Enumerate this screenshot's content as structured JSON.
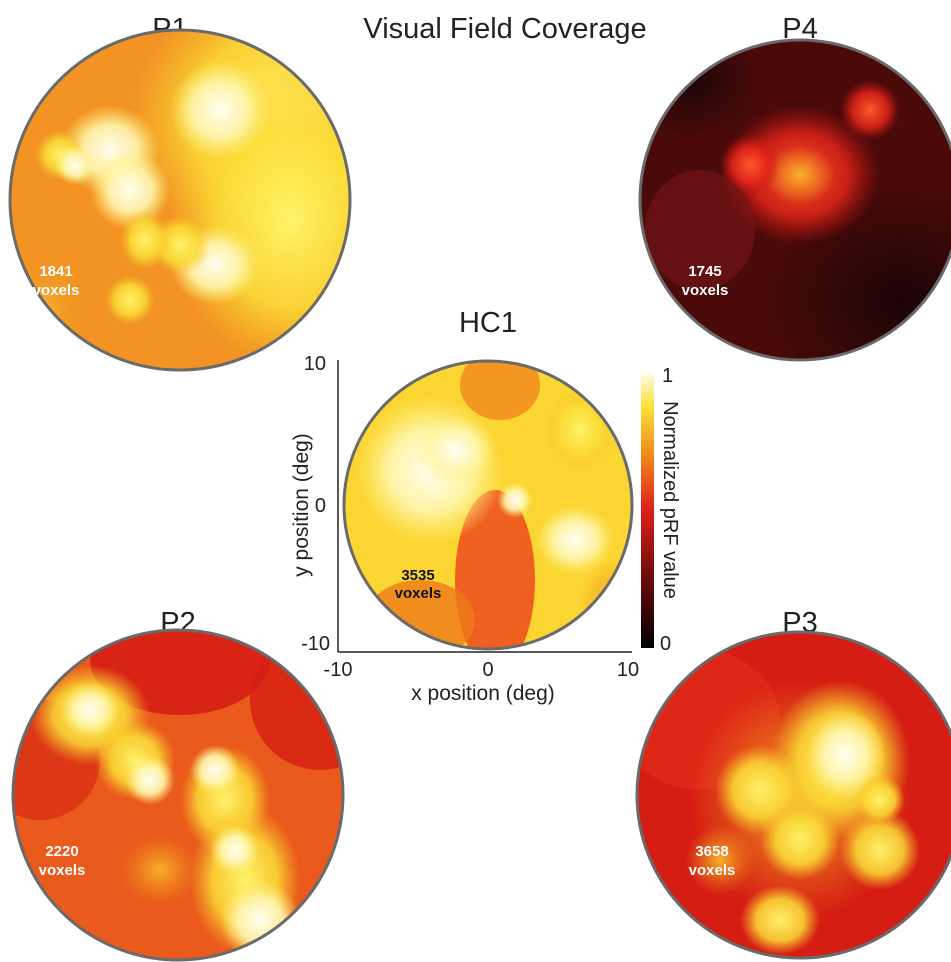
{
  "figure": {
    "title": "Visual Field Coverage",
    "voxels_word": "voxels",
    "panels": [
      {
        "id": "P1",
        "label": "P1",
        "voxels": "1841",
        "brightness": "high"
      },
      {
        "id": "P4",
        "label": "P4",
        "voxels": "1745",
        "brightness": "low"
      },
      {
        "id": "HC1",
        "label": "HC1",
        "voxels": "3535",
        "brightness": "highest"
      },
      {
        "id": "P2",
        "label": "P2",
        "voxels": "2220",
        "brightness": "medium"
      },
      {
        "id": "P3",
        "label": "P3",
        "voxels": "3658",
        "brightness": "medium"
      }
    ],
    "axes": {
      "xlabel": "x position (deg)",
      "ylabel": "y position (deg)",
      "x_ticks": [
        "-10",
        "0",
        "10"
      ],
      "y_ticks": [
        "10",
        "0",
        "-10"
      ],
      "range": [
        -10,
        10
      ]
    },
    "colorbar": {
      "label": "Normalized pRF value",
      "max_label": "1",
      "min_label": "0",
      "colormap": [
        "#000000",
        "#6a0b0b",
        "#e0201a",
        "#f08a1a",
        "#fbe23a",
        "#fffdf0"
      ]
    }
  }
}
